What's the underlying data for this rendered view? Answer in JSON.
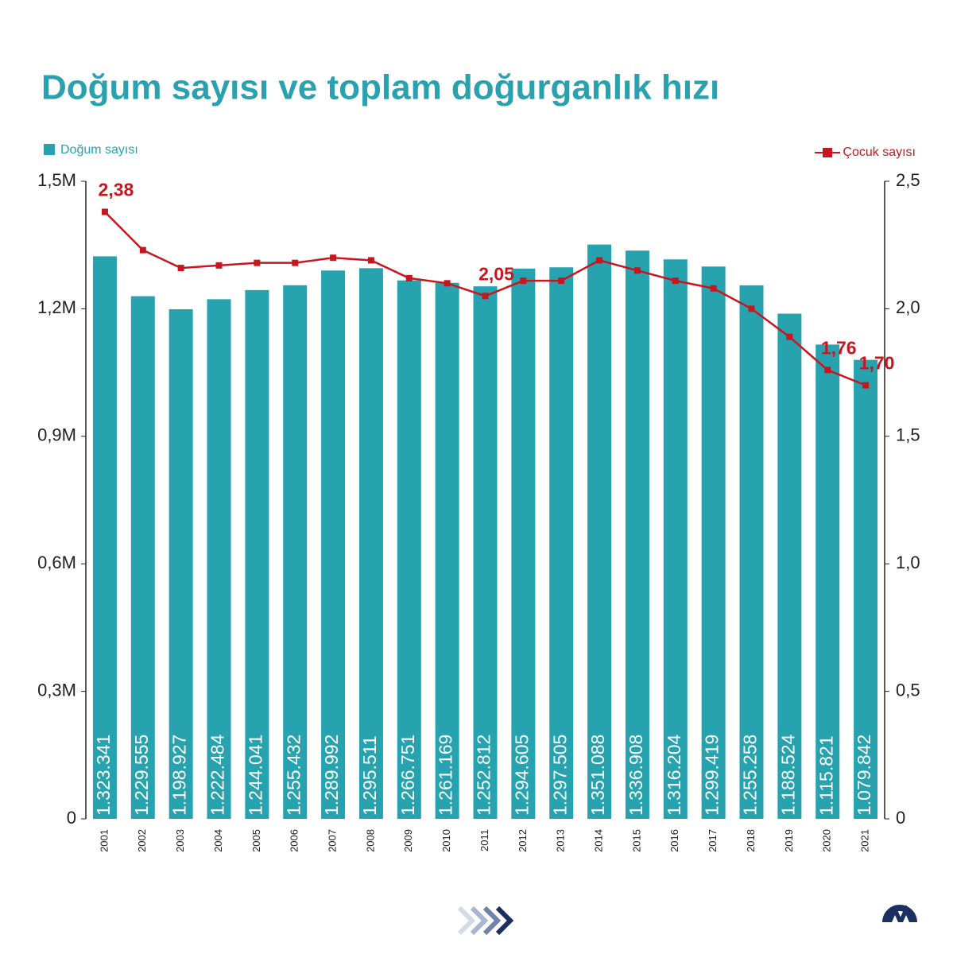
{
  "chart_data": {
    "type": "bar",
    "title": "Doğum sayısı ve toplam doğurganlık hızı",
    "categories": [
      "2001",
      "2002",
      "2003",
      "2004",
      "2005",
      "2006",
      "2007",
      "2008",
      "2009",
      "2010",
      "2011",
      "2012",
      "2013",
      "2014",
      "2015",
      "2016",
      "2017",
      "2018",
      "2019",
      "2020",
      "2021"
    ],
    "series": [
      {
        "name": "Doğum sayısı",
        "type": "bar",
        "color": "#27a3b0",
        "values": [
          1323341,
          1229555,
          1198927,
          1222484,
          1244041,
          1255432,
          1289992,
          1295511,
          1266751,
          1261169,
          1252812,
          1294605,
          1297505,
          1351088,
          1336908,
          1316204,
          1299419,
          1255258,
          1188524,
          1115821,
          1079842
        ],
        "value_labels": [
          "1.323.341",
          "1.229.555",
          "1.198.927",
          "1.222.484",
          "1.244.041",
          "1.255.432",
          "1.289.992",
          "1.295.511",
          "1.266.751",
          "1.261.169",
          "1.252.812",
          "1.294.605",
          "1.297.505",
          "1.351.088",
          "1.336.908",
          "1.316.204",
          "1.299.419",
          "1.255.258",
          "1.188.524",
          "1.115.821",
          "1.079.842"
        ]
      },
      {
        "name": "Çocuk sayısı",
        "type": "line",
        "axis": "y2",
        "color": "#c8161e",
        "values": [
          2.38,
          2.23,
          2.16,
          2.17,
          2.18,
          2.18,
          2.2,
          2.19,
          2.12,
          2.1,
          2.05,
          2.11,
          2.11,
          2.19,
          2.15,
          2.11,
          2.08,
          2.0,
          1.89,
          1.76,
          1.7
        ],
        "value_labels": [
          "2,38",
          null,
          null,
          null,
          null,
          null,
          null,
          null,
          null,
          null,
          "2,05",
          null,
          null,
          null,
          null,
          null,
          null,
          null,
          null,
          "1,76",
          "1,70"
        ]
      }
    ],
    "ylim": [
      0,
      1500000
    ],
    "yticks": [
      0,
      {
        "value": 300000,
        "label": "0,3M"
      },
      {
        "value": 600000,
        "label": "0,6M"
      },
      {
        "value": 900000,
        "label": "0,9M"
      },
      {
        "value": 1200000,
        "label": "1,2M"
      },
      {
        "value": 1500000,
        "label": "1,5M"
      }
    ],
    "y2lim": [
      0,
      2.5
    ],
    "y2ticks": [
      0,
      {
        "value": 0.5,
        "label": "0,5"
      },
      {
        "value": 1,
        "label": "1,0"
      },
      {
        "value": 1.5,
        "label": "1,5"
      },
      {
        "value": 2,
        "label": "2,0"
      },
      {
        "value": 2.5,
        "label": "2,5"
      }
    ]
  }
}
